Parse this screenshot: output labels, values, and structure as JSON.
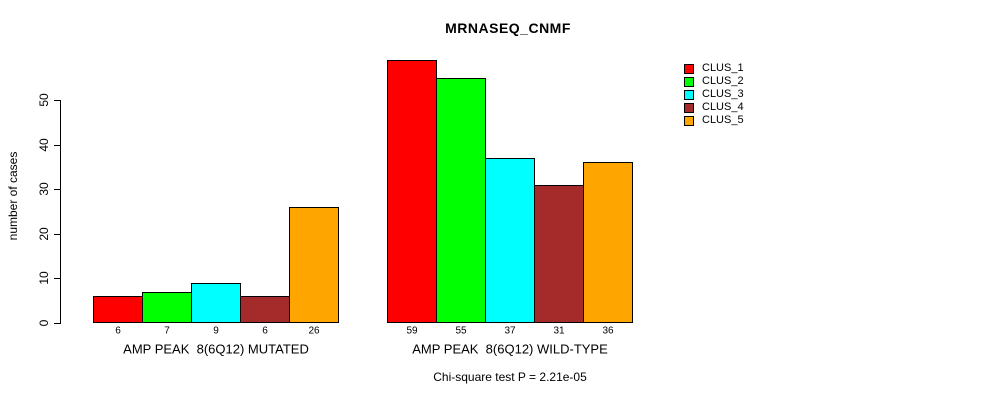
{
  "chart_data": {
    "type": "bar",
    "title": "MRNASEQ_CNMF",
    "ylabel": "number of cases",
    "xlabel": "",
    "ylim": [
      0,
      60
    ],
    "yticks": [
      0,
      10,
      20,
      30,
      40,
      50
    ],
    "grid": false,
    "legend_position": "right",
    "categories": [
      "AMP PEAK  8(6Q12) MUTATED",
      "AMP PEAK  8(6Q12) WILD-TYPE"
    ],
    "series": [
      {
        "name": "CLUS_1",
        "color": "#FF0000",
        "values": [
          6,
          59
        ]
      },
      {
        "name": "CLUS_2",
        "color": "#00FF00",
        "values": [
          7,
          55
        ]
      },
      {
        "name": "CLUS_3",
        "color": "#00FFFF",
        "values": [
          9,
          37
        ]
      },
      {
        "name": "CLUS_4",
        "color": "#A52A2A",
        "values": [
          6,
          31
        ]
      },
      {
        "name": "CLUS_5",
        "color": "#FFA500",
        "values": [
          26,
          36
        ]
      }
    ],
    "bar_value_labels": [
      [
        "6",
        "7",
        "9",
        "6",
        "26"
      ],
      [
        "59",
        "55",
        "37",
        "31",
        "36"
      ]
    ],
    "annotation": "Chi-square test P = 2.21e-05"
  }
}
